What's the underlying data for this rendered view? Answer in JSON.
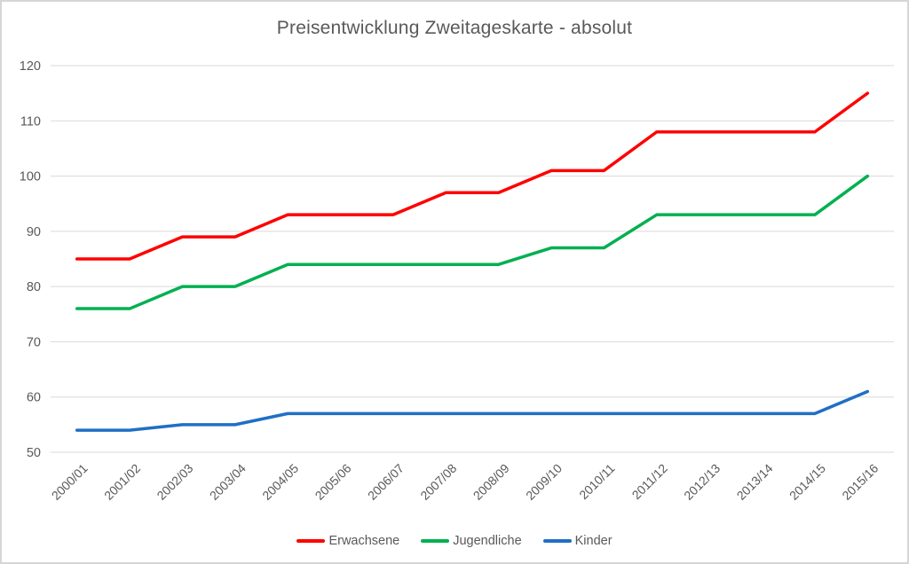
{
  "chart_data": {
    "type": "line",
    "title": "Preisentwicklung Zweitageskarte - absolut",
    "categories": [
      "2000/01",
      "2001/02",
      "2002/03",
      "2003/04",
      "2004/05",
      "2005/06",
      "2006/07",
      "2007/08",
      "2008/09",
      "2009/10",
      "2010/11",
      "2011/12",
      "2012/13",
      "2013/14",
      "2014/15",
      "2015/16"
    ],
    "series": [
      {
        "name": "Erwachsene",
        "color": "#ff0000",
        "values": [
          85,
          85,
          89,
          89,
          93,
          93,
          93,
          97,
          97,
          101,
          101,
          108,
          108,
          108,
          108,
          115
        ]
      },
      {
        "name": "Jugendliche",
        "color": "#00b050",
        "values": [
          76,
          76,
          80,
          80,
          84,
          84,
          84,
          84,
          84,
          87,
          87,
          93,
          93,
          93,
          93,
          100
        ]
      },
      {
        "name": "Kinder",
        "color": "#1f6fc5",
        "values": [
          54,
          54,
          55,
          55,
          57,
          57,
          57,
          57,
          57,
          57,
          57,
          57,
          57,
          57,
          57,
          61
        ]
      }
    ],
    "xlabel": "",
    "ylabel": "",
    "ylim": [
      50,
      120
    ],
    "yticks": [
      50,
      60,
      70,
      80,
      90,
      100,
      110,
      120
    ],
    "grid": "horizontal",
    "legend_position": "bottom"
  },
  "colors": {
    "text": "#595959",
    "grid": "#d9d9d9",
    "border": "#d6d6d6",
    "background": "#ffffff"
  }
}
